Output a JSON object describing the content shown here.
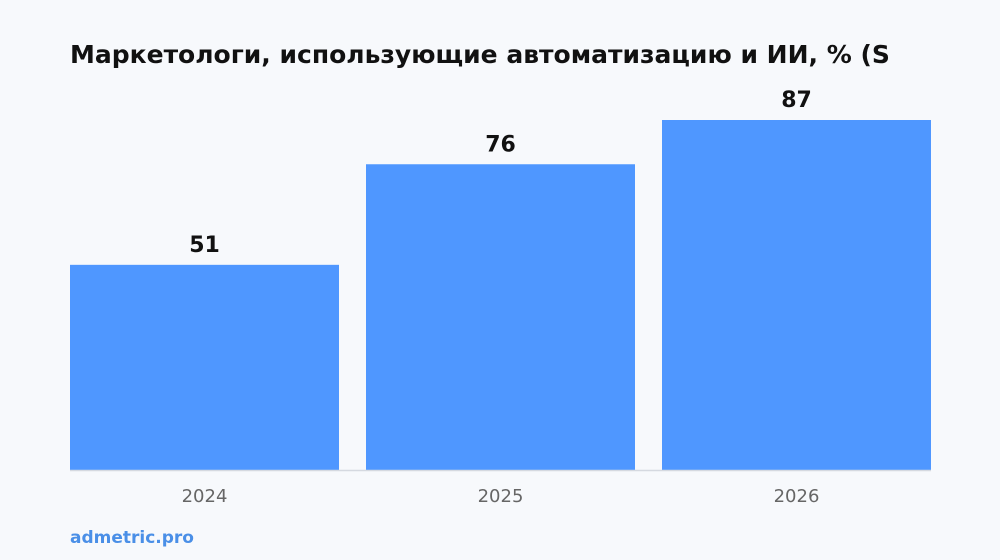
{
  "chart_data": {
    "type": "bar",
    "title": "Маркетологи, использующие автоматизацию и ИИ, % (S",
    "categories": [
      "2024",
      "2025",
      "2026"
    ],
    "values": [
      51,
      76,
      87
    ],
    "color": "#4f97ff",
    "source": "admetric.pro"
  }
}
